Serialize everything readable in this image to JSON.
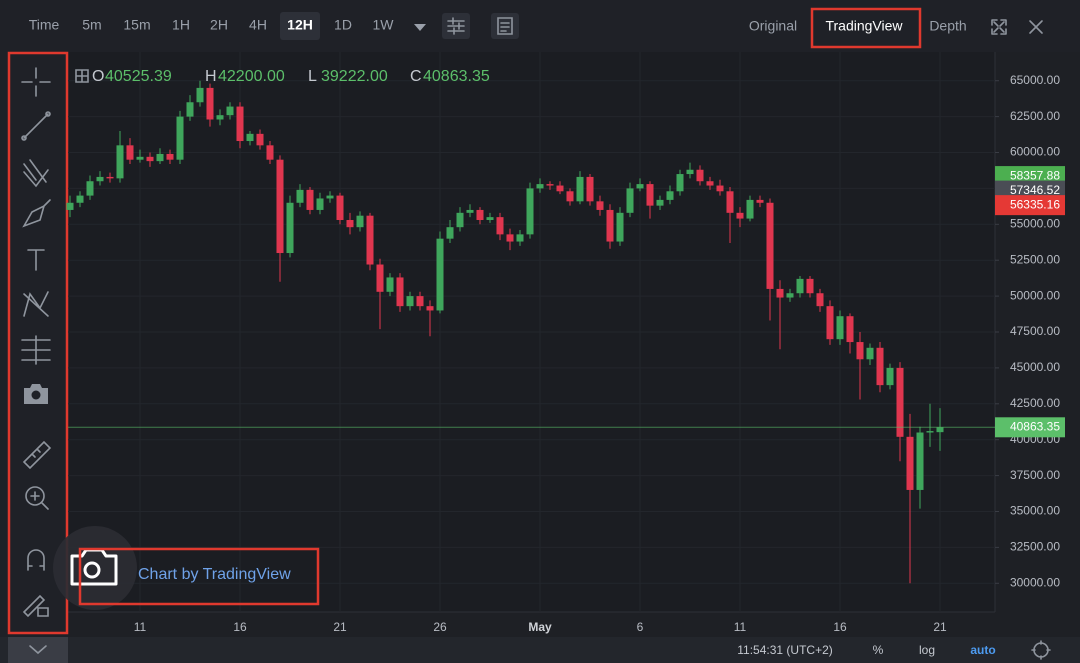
{
  "toolbar": {
    "intervals": [
      "Time",
      "5m",
      "15m",
      "1H",
      "2H",
      "4H",
      "12H",
      "1D",
      "1W"
    ],
    "active_interval": "12H",
    "views": [
      "Original",
      "TradingView",
      "Depth"
    ]
  },
  "ohlc_legend": [
    {
      "key": "O",
      "value": "40525.39"
    },
    {
      "key": "H",
      "value": "42200.00"
    },
    {
      "key": "L",
      "value": "39222.00"
    },
    {
      "key": "C",
      "value": "40863.35"
    }
  ],
  "watermark": "Chart by TradingView",
  "footer": {
    "time": "11:54:31 (UTC+2)",
    "buttons": [
      "%",
      "log",
      "auto"
    ]
  },
  "chart_data": {
    "type": "candlestick",
    "categories": [
      null,
      null,
      null,
      null,
      null,
      null,
      null,
      "11",
      null,
      null,
      null,
      null,
      null,
      null,
      null,
      null,
      null,
      "16",
      null,
      null,
      null,
      null,
      null,
      null,
      null,
      null,
      null,
      "21",
      null,
      null,
      null,
      null,
      null,
      null,
      null,
      null,
      null,
      "26",
      null,
      null,
      null,
      null,
      null,
      null,
      null,
      null,
      null,
      "May",
      null,
      null,
      null,
      null,
      null,
      null,
      null,
      null,
      null,
      "6",
      null,
      null,
      null,
      null,
      null,
      null,
      null,
      null,
      null,
      "11",
      null,
      null,
      null,
      null,
      null,
      null,
      null,
      null,
      null,
      "16",
      null,
      null,
      null,
      null,
      null,
      null,
      null,
      null,
      null,
      "21"
    ],
    "open": [
      56000,
      56500,
      57000,
      58000,
      58300,
      58200,
      60500,
      59500,
      59700,
      59400,
      59900,
      59500,
      62500,
      63500,
      64500,
      62300,
      62600,
      63200,
      60800,
      61300,
      60500,
      59500,
      53000,
      56500,
      57400,
      56000,
      56800,
      57000,
      55300,
      54800,
      55600,
      52200,
      50300,
      51300,
      49300,
      50000,
      49300,
      49000,
      54000,
      54800,
      55800,
      56000,
      55300,
      55500,
      54300,
      53800,
      54300,
      57500,
      57800,
      57700,
      57300,
      56600,
      58300,
      56600,
      56000,
      53800,
      55800,
      57500,
      57800,
      56300,
      56700,
      57300,
      58500,
      58800,
      58000,
      57700,
      57300,
      55800,
      55400,
      56700,
      56500,
      50500,
      49900,
      50200,
      51200,
      50200,
      49300,
      47000,
      48600,
      46800,
      45600,
      46400,
      43800,
      45000,
      40200,
      36500,
      40500,
      40525.39
    ],
    "high": [
      57000,
      57300,
      58400,
      58700,
      58600,
      61500,
      61000,
      60200,
      60000,
      60300,
      60200,
      62900,
      64000,
      65000,
      64800,
      63000,
      63500,
      63500,
      61500,
      61600,
      60800,
      59800,
      57000,
      57800,
      57600,
      57200,
      57300,
      57200,
      55800,
      55900,
      55800,
      52600,
      51600,
      51600,
      50300,
      50300,
      49700,
      54500,
      55300,
      56200,
      56400,
      56200,
      55800,
      55800,
      54700,
      54600,
      57900,
      58200,
      58000,
      58000,
      57500,
      58700,
      58500,
      57000,
      56400,
      56200,
      57900,
      58200,
      58000,
      57000,
      57700,
      58800,
      59300,
      59100,
      58300,
      58100,
      57600,
      56200,
      57000,
      57000,
      56800,
      51100,
      50500,
      51400,
      51400,
      50500,
      49700,
      49000,
      48800,
      47500,
      46700,
      46800,
      45300,
      45400,
      41800,
      40900,
      42500,
      42200
    ],
    "low": [
      55500,
      56200,
      56700,
      57700,
      57900,
      57900,
      59200,
      59300,
      59000,
      59200,
      59200,
      59200,
      62200,
      63200,
      61800,
      61900,
      62300,
      60300,
      60500,
      60200,
      59200,
      51000,
      52700,
      56200,
      55700,
      55700,
      56500,
      55000,
      54300,
      54500,
      51800,
      47700,
      50000,
      48900,
      49000,
      49000,
      47200,
      48800,
      53700,
      54500,
      55500,
      55000,
      55100,
      53900,
      53200,
      53500,
      54000,
      57200,
      57400,
      57100,
      56300,
      56400,
      56300,
      55600,
      53300,
      53500,
      55500,
      57300,
      55400,
      56000,
      56400,
      57000,
      58200,
      57700,
      57400,
      57000,
      53700,
      54800,
      55200,
      56200,
      48300,
      46300,
      49600,
      49900,
      49900,
      48900,
      46600,
      46600,
      46000,
      42800,
      45200,
      43300,
      43500,
      38500,
      30000,
      35200,
      39500,
      39222
    ],
    "close": [
      56500,
      57000,
      58000,
      58300,
      58200,
      60500,
      59500,
      59700,
      59400,
      59900,
      59500,
      62500,
      63500,
      64500,
      62300,
      62600,
      63200,
      60800,
      61300,
      60500,
      59500,
      53000,
      56500,
      57400,
      56000,
      56800,
      57000,
      55300,
      54800,
      55600,
      52200,
      50300,
      51300,
      49300,
      50000,
      49300,
      49000,
      54000,
      54800,
      55800,
      56000,
      55300,
      55500,
      54300,
      53800,
      54300,
      57500,
      57800,
      57700,
      57300,
      56600,
      58300,
      56600,
      56000,
      53800,
      55800,
      57500,
      57800,
      56300,
      56700,
      57300,
      58500,
      58800,
      58000,
      57700,
      57300,
      55800,
      55400,
      56700,
      56500,
      50500,
      49900,
      50200,
      51200,
      50200,
      49300,
      47000,
      48600,
      46800,
      45600,
      46400,
      43800,
      45000,
      40200,
      36500,
      40500,
      40600,
      40863.35
    ],
    "up_color": "#3fa65c",
    "down_color": "#e0364f",
    "ylim": [
      28000,
      67000
    ],
    "yticks": [
      {
        "value": 65000,
        "label": "65000.00"
      },
      {
        "value": 62500,
        "label": "62500.00"
      },
      {
        "value": 60000,
        "label": "60000.00"
      },
      {
        "value": 57500,
        "label": "57500.00"
      },
      {
        "value": 55000,
        "label": "55000.00"
      },
      {
        "value": 52500,
        "label": "52500.00"
      },
      {
        "value": 50000,
        "label": "50000.00"
      },
      {
        "value": 47500,
        "label": "47500.00"
      },
      {
        "value": 45000,
        "label": "45000.00"
      },
      {
        "value": 42500,
        "label": "42500.00"
      },
      {
        "value": 40000,
        "label": "40000.00"
      },
      {
        "value": 37500,
        "label": "37500.00"
      },
      {
        "value": 35000,
        "label": "35000.00"
      },
      {
        "value": 32500,
        "label": "32500.00"
      },
      {
        "value": 30000,
        "label": "30000.00"
      }
    ],
    "grid": true,
    "price_markers": [
      {
        "value": 58357.88,
        "color": "#4caf50"
      },
      {
        "value": 57346.52,
        "color": "#4a4d55"
      },
      {
        "value": 56335.16,
        "color": "#e53935"
      },
      {
        "value": 40863.35,
        "color": "#5cbf6a",
        "line": true
      }
    ]
  }
}
